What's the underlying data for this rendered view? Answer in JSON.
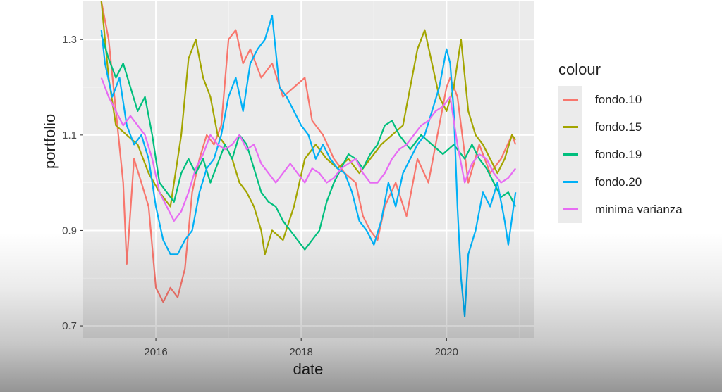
{
  "chart_data": {
    "type": "line",
    "xlabel": "date",
    "ylabel": "portfolio",
    "x_ticks": [
      "2016",
      "2018",
      "2020"
    ],
    "y_ticks": [
      "0.7",
      "0.9",
      "1.1",
      "1.3"
    ],
    "xlim": [
      2015.0,
      2021.2
    ],
    "ylim": [
      0.675,
      1.38
    ],
    "grid": true,
    "legend": {
      "title": "colour",
      "position": "right"
    },
    "series": [
      {
        "name": "fondo.10",
        "color": "#F8766D",
        "points": [
          [
            2015.25,
            1.38
          ],
          [
            2015.35,
            1.3
          ],
          [
            2015.45,
            1.15
          ],
          [
            2015.55,
            1.0
          ],
          [
            2015.6,
            0.83
          ],
          [
            2015.7,
            1.05
          ],
          [
            2015.8,
            1.0
          ],
          [
            2015.9,
            0.95
          ],
          [
            2016.0,
            0.78
          ],
          [
            2016.1,
            0.75
          ],
          [
            2016.2,
            0.78
          ],
          [
            2016.3,
            0.76
          ],
          [
            2016.4,
            0.82
          ],
          [
            2016.5,
            0.98
          ],
          [
            2016.6,
            1.05
          ],
          [
            2016.7,
            1.1
          ],
          [
            2016.8,
            1.08
          ],
          [
            2016.9,
            1.12
          ],
          [
            2017.0,
            1.3
          ],
          [
            2017.1,
            1.32
          ],
          [
            2017.2,
            1.25
          ],
          [
            2017.3,
            1.28
          ],
          [
            2017.45,
            1.22
          ],
          [
            2017.6,
            1.25
          ],
          [
            2017.75,
            1.18
          ],
          [
            2017.9,
            1.2
          ],
          [
            2018.05,
            1.22
          ],
          [
            2018.15,
            1.13
          ],
          [
            2018.3,
            1.1
          ],
          [
            2018.45,
            1.05
          ],
          [
            2018.6,
            1.02
          ],
          [
            2018.75,
            1.0
          ],
          [
            2018.85,
            0.93
          ],
          [
            2018.95,
            0.9
          ],
          [
            2019.05,
            0.88
          ],
          [
            2019.15,
            0.95
          ],
          [
            2019.3,
            1.0
          ],
          [
            2019.45,
            0.93
          ],
          [
            2019.6,
            1.05
          ],
          [
            2019.75,
            1.0
          ],
          [
            2019.9,
            1.12
          ],
          [
            2020.0,
            1.2
          ],
          [
            2020.05,
            1.22
          ],
          [
            2020.15,
            1.18
          ],
          [
            2020.3,
            1.0
          ],
          [
            2020.45,
            1.08
          ],
          [
            2020.6,
            1.02
          ],
          [
            2020.75,
            1.05
          ],
          [
            2020.9,
            1.1
          ],
          [
            2020.95,
            1.08
          ]
        ]
      },
      {
        "name": "fondo.15",
        "color": "#A3A500",
        "points": [
          [
            2015.25,
            1.38
          ],
          [
            2015.35,
            1.22
          ],
          [
            2015.45,
            1.12
          ],
          [
            2015.6,
            1.1
          ],
          [
            2015.75,
            1.08
          ],
          [
            2015.9,
            1.02
          ],
          [
            2016.05,
            0.98
          ],
          [
            2016.2,
            0.95
          ],
          [
            2016.35,
            1.1
          ],
          [
            2016.45,
            1.26
          ],
          [
            2016.55,
            1.3
          ],
          [
            2016.65,
            1.22
          ],
          [
            2016.75,
            1.18
          ],
          [
            2016.85,
            1.1
          ],
          [
            2016.95,
            1.08
          ],
          [
            2017.05,
            1.05
          ],
          [
            2017.15,
            1.0
          ],
          [
            2017.25,
            0.98
          ],
          [
            2017.35,
            0.95
          ],
          [
            2017.45,
            0.9
          ],
          [
            2017.5,
            0.85
          ],
          [
            2017.6,
            0.9
          ],
          [
            2017.75,
            0.88
          ],
          [
            2017.9,
            0.95
          ],
          [
            2018.05,
            1.05
          ],
          [
            2018.2,
            1.08
          ],
          [
            2018.35,
            1.05
          ],
          [
            2018.5,
            1.03
          ],
          [
            2018.65,
            1.05
          ],
          [
            2018.8,
            1.02
          ],
          [
            2018.95,
            1.05
          ],
          [
            2019.1,
            1.08
          ],
          [
            2019.25,
            1.1
          ],
          [
            2019.4,
            1.12
          ],
          [
            2019.5,
            1.2
          ],
          [
            2019.6,
            1.28
          ],
          [
            2019.7,
            1.32
          ],
          [
            2019.8,
            1.25
          ],
          [
            2019.9,
            1.18
          ],
          [
            2020.0,
            1.15
          ],
          [
            2020.1,
            1.2
          ],
          [
            2020.2,
            1.3
          ],
          [
            2020.3,
            1.15
          ],
          [
            2020.4,
            1.1
          ],
          [
            2020.5,
            1.08
          ],
          [
            2020.6,
            1.05
          ],
          [
            2020.7,
            1.02
          ],
          [
            2020.8,
            1.05
          ],
          [
            2020.9,
            1.1
          ],
          [
            2020.95,
            1.09
          ]
        ]
      },
      {
        "name": "fondo.19",
        "color": "#00BF7D",
        "points": [
          [
            2015.25,
            1.31
          ],
          [
            2015.35,
            1.26
          ],
          [
            2015.45,
            1.22
          ],
          [
            2015.55,
            1.25
          ],
          [
            2015.65,
            1.2
          ],
          [
            2015.75,
            1.15
          ],
          [
            2015.85,
            1.18
          ],
          [
            2015.95,
            1.1
          ],
          [
            2016.05,
            1.0
          ],
          [
            2016.15,
            0.98
          ],
          [
            2016.25,
            0.96
          ],
          [
            2016.35,
            1.02
          ],
          [
            2016.45,
            1.05
          ],
          [
            2016.55,
            1.02
          ],
          [
            2016.65,
            1.05
          ],
          [
            2016.75,
            1.0
          ],
          [
            2016.85,
            1.04
          ],
          [
            2016.95,
            1.08
          ],
          [
            2017.05,
            1.05
          ],
          [
            2017.15,
            1.1
          ],
          [
            2017.25,
            1.08
          ],
          [
            2017.35,
            1.03
          ],
          [
            2017.45,
            0.98
          ],
          [
            2017.55,
            0.96
          ],
          [
            2017.65,
            0.95
          ],
          [
            2017.75,
            0.92
          ],
          [
            2017.85,
            0.9
          ],
          [
            2017.95,
            0.88
          ],
          [
            2018.05,
            0.86
          ],
          [
            2018.15,
            0.88
          ],
          [
            2018.25,
            0.9
          ],
          [
            2018.35,
            0.96
          ],
          [
            2018.45,
            1.0
          ],
          [
            2018.55,
            1.03
          ],
          [
            2018.65,
            1.06
          ],
          [
            2018.75,
            1.05
          ],
          [
            2018.85,
            1.03
          ],
          [
            2018.95,
            1.06
          ],
          [
            2019.05,
            1.08
          ],
          [
            2019.15,
            1.12
          ],
          [
            2019.25,
            1.13
          ],
          [
            2019.35,
            1.1
          ],
          [
            2019.5,
            1.07
          ],
          [
            2019.65,
            1.1
          ],
          [
            2019.8,
            1.08
          ],
          [
            2019.95,
            1.06
          ],
          [
            2020.1,
            1.08
          ],
          [
            2020.25,
            1.05
          ],
          [
            2020.35,
            1.08
          ],
          [
            2020.45,
            1.05
          ],
          [
            2020.55,
            1.03
          ],
          [
            2020.65,
            1.0
          ],
          [
            2020.75,
            0.97
          ],
          [
            2020.85,
            0.98
          ],
          [
            2020.95,
            0.95
          ]
        ]
      },
      {
        "name": "fondo.20",
        "color": "#00B0F6",
        "points": [
          [
            2015.25,
            1.32
          ],
          [
            2015.3,
            1.25
          ],
          [
            2015.4,
            1.18
          ],
          [
            2015.5,
            1.22
          ],
          [
            2015.6,
            1.12
          ],
          [
            2015.7,
            1.08
          ],
          [
            2015.8,
            1.1
          ],
          [
            2015.9,
            1.05
          ],
          [
            2016.0,
            0.95
          ],
          [
            2016.1,
            0.88
          ],
          [
            2016.2,
            0.85
          ],
          [
            2016.3,
            0.85
          ],
          [
            2016.4,
            0.88
          ],
          [
            2016.5,
            0.9
          ],
          [
            2016.6,
            0.98
          ],
          [
            2016.7,
            1.03
          ],
          [
            2016.8,
            1.05
          ],
          [
            2016.9,
            1.1
          ],
          [
            2017.0,
            1.18
          ],
          [
            2017.1,
            1.22
          ],
          [
            2017.2,
            1.15
          ],
          [
            2017.3,
            1.25
          ],
          [
            2017.4,
            1.28
          ],
          [
            2017.5,
            1.3
          ],
          [
            2017.6,
            1.35
          ],
          [
            2017.7,
            1.2
          ],
          [
            2017.8,
            1.18
          ],
          [
            2017.9,
            1.15
          ],
          [
            2018.0,
            1.12
          ],
          [
            2018.1,
            1.1
          ],
          [
            2018.2,
            1.05
          ],
          [
            2018.3,
            1.08
          ],
          [
            2018.4,
            1.05
          ],
          [
            2018.5,
            1.03
          ],
          [
            2018.6,
            1.02
          ],
          [
            2018.7,
            0.98
          ],
          [
            2018.8,
            0.92
          ],
          [
            2018.9,
            0.9
          ],
          [
            2019.0,
            0.87
          ],
          [
            2019.1,
            0.92
          ],
          [
            2019.2,
            1.0
          ],
          [
            2019.3,
            0.95
          ],
          [
            2019.4,
            1.02
          ],
          [
            2019.5,
            1.05
          ],
          [
            2019.6,
            1.08
          ],
          [
            2019.7,
            1.1
          ],
          [
            2019.8,
            1.15
          ],
          [
            2019.9,
            1.2
          ],
          [
            2020.0,
            1.28
          ],
          [
            2020.05,
            1.25
          ],
          [
            2020.1,
            1.15
          ],
          [
            2020.15,
            0.95
          ],
          [
            2020.2,
            0.8
          ],
          [
            2020.25,
            0.72
          ],
          [
            2020.3,
            0.85
          ],
          [
            2020.4,
            0.9
          ],
          [
            2020.5,
            0.98
          ],
          [
            2020.6,
            0.95
          ],
          [
            2020.7,
            1.0
          ],
          [
            2020.8,
            0.92
          ],
          [
            2020.85,
            0.87
          ],
          [
            2020.95,
            0.98
          ]
        ]
      },
      {
        "name": "minima varianza",
        "color": "#E76BF3",
        "points": [
          [
            2015.25,
            1.22
          ],
          [
            2015.35,
            1.18
          ],
          [
            2015.45,
            1.15
          ],
          [
            2015.55,
            1.12
          ],
          [
            2015.65,
            1.14
          ],
          [
            2015.75,
            1.12
          ],
          [
            2015.85,
            1.1
          ],
          [
            2015.95,
            1.05
          ],
          [
            2016.05,
            0.98
          ],
          [
            2016.15,
            0.95
          ],
          [
            2016.25,
            0.92
          ],
          [
            2016.35,
            0.94
          ],
          [
            2016.45,
            0.98
          ],
          [
            2016.55,
            1.03
          ],
          [
            2016.65,
            1.06
          ],
          [
            2016.75,
            1.1
          ],
          [
            2016.85,
            1.08
          ],
          [
            2016.95,
            1.07
          ],
          [
            2017.05,
            1.08
          ],
          [
            2017.15,
            1.1
          ],
          [
            2017.25,
            1.07
          ],
          [
            2017.35,
            1.08
          ],
          [
            2017.45,
            1.04
          ],
          [
            2017.55,
            1.02
          ],
          [
            2017.65,
            1.0
          ],
          [
            2017.75,
            1.02
          ],
          [
            2017.85,
            1.04
          ],
          [
            2017.95,
            1.02
          ],
          [
            2018.05,
            1.0
          ],
          [
            2018.15,
            1.03
          ],
          [
            2018.25,
            1.02
          ],
          [
            2018.35,
            1.0
          ],
          [
            2018.45,
            1.01
          ],
          [
            2018.55,
            1.03
          ],
          [
            2018.65,
            1.04
          ],
          [
            2018.75,
            1.05
          ],
          [
            2018.85,
            1.02
          ],
          [
            2018.95,
            1.0
          ],
          [
            2019.05,
            1.0
          ],
          [
            2019.15,
            1.02
          ],
          [
            2019.25,
            1.05
          ],
          [
            2019.35,
            1.07
          ],
          [
            2019.45,
            1.08
          ],
          [
            2019.55,
            1.1
          ],
          [
            2019.65,
            1.12
          ],
          [
            2019.75,
            1.13
          ],
          [
            2019.85,
            1.15
          ],
          [
            2019.95,
            1.16
          ],
          [
            2020.05,
            1.18
          ],
          [
            2020.15,
            1.08
          ],
          [
            2020.25,
            1.0
          ],
          [
            2020.35,
            1.04
          ],
          [
            2020.45,
            1.06
          ],
          [
            2020.55,
            1.05
          ],
          [
            2020.65,
            1.02
          ],
          [
            2020.75,
            1.0
          ],
          [
            2020.85,
            1.01
          ],
          [
            2020.95,
            1.03
          ]
        ]
      }
    ]
  }
}
